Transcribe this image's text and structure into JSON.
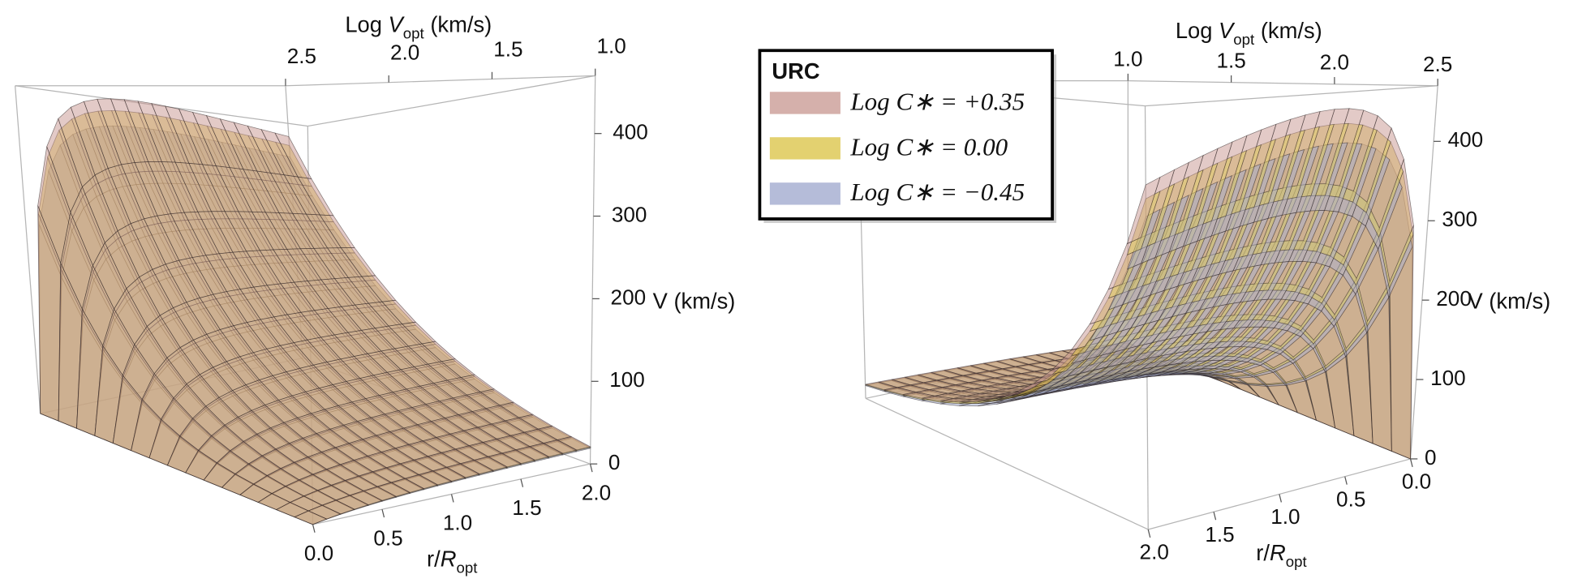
{
  "chart_data": [
    {
      "type": "surface3d",
      "xlabel": [
        "r/",
        "R",
        "opt"
      ],
      "ylabel": [
        "Log ",
        "V",
        "opt",
        "  (km/s)"
      ],
      "zlabel": "V (km/s)",
      "xlim": [
        0,
        2
      ],
      "ylim": [
        1,
        2.5
      ],
      "zlim": [
        0,
        470
      ],
      "xticks": [
        {
          "value": 0,
          "label": "0.0"
        },
        0.5,
        {
          "value": 1,
          "label": "1.0"
        },
        1.5,
        {
          "value": 2,
          "label": "2.0"
        }
      ],
      "yticks": [
        2.5,
        {
          "value": 2,
          "label": "2.0"
        },
        1.5,
        {
          "value": 1,
          "label": "1.0"
        }
      ],
      "zticks": [
        0,
        100,
        200,
        300,
        400
      ]
    },
    {
      "type": "surface3d",
      "xlabel": [
        "r/",
        "R",
        "opt"
      ],
      "ylabel": [
        "Log ",
        "V",
        "opt",
        "  (km/s)"
      ],
      "zlabel": "V (km/s)",
      "xlim": [
        0,
        2
      ],
      "ylim": [
        1,
        2.5
      ],
      "zlim": [
        0,
        470
      ],
      "xticks": [
        {
          "value": 2,
          "label": "2.0"
        },
        1.5,
        {
          "value": 1,
          "label": "1.0"
        },
        0.5,
        {
          "value": 0,
          "label": "0.0"
        }
      ],
      "yticks": [
        {
          "value": 1,
          "label": "1.0"
        },
        1.5,
        {
          "value": 2,
          "label": "2.0"
        },
        2.5
      ],
      "zticks": [
        0,
        100,
        200,
        300,
        400
      ],
      "legend_title": "URC",
      "series": [
        {
          "name": "Log C∗ = +0.35",
          "value": 0.35,
          "color": "#c7968f"
        },
        {
          "name": "Log C∗ = 0.00",
          "value": 0.0,
          "color": "#d9c240"
        },
        {
          "name": "Log C∗ = −0.45",
          "value": -0.45,
          "color": "#9ca6cc"
        }
      ]
    }
  ]
}
